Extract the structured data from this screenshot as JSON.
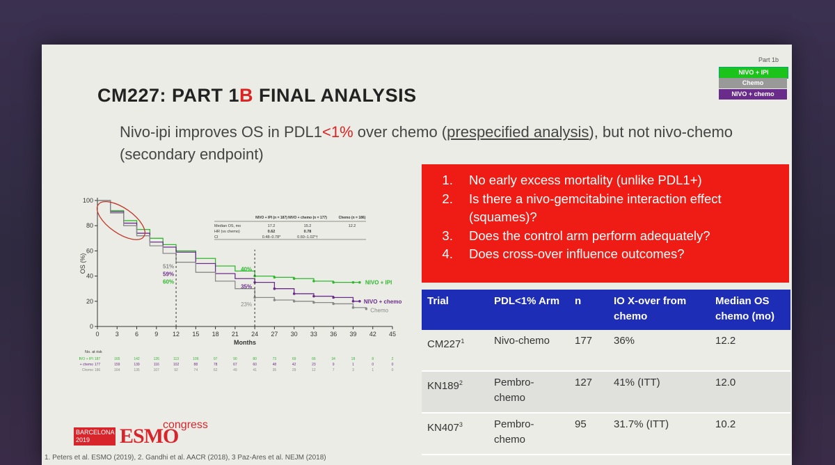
{
  "header": {
    "title_pre": "CM227: PART 1",
    "title_red": "B",
    "title_post": " FINAL ANALYSIS",
    "subtitle_a": "Nivo-ipi improves OS in PDL1",
    "subtitle_red": "<1%",
    "subtitle_b": " over chemo (",
    "subtitle_ul": "prespecified analysis",
    "subtitle_c": "), but not nivo-chemo (secondary endpoint)"
  },
  "legend": {
    "head": "Part 1b",
    "items": [
      "NIVO + IPI",
      "Chemo",
      "NIVO + chemo"
    ],
    "colors": [
      "#1bc31b",
      "#999999",
      "#6a2c8a"
    ]
  },
  "questions": [
    "No early excess mortality (unlike PDL1+)",
    "Is there a nivo-gemcitabine interaction effect (squames)?",
    "Does the control arm perform adequately?",
    "Does cross-over influence outcomes?"
  ],
  "table": {
    "headers": [
      "Trial",
      "PDL<1% Arm",
      "n",
      "IO X-over from chemo",
      "Median OS chemo (mo)"
    ],
    "rows": [
      {
        "trial": "CM227",
        "sup": "1",
        "arm": "Nivo-chemo",
        "n": "177",
        "xover": "36%",
        "os": "12.2"
      },
      {
        "trial": "KN189",
        "sup": "2",
        "arm": "Pembro-chemo",
        "n": "127",
        "xover": "41% (ITT)",
        "os": "12.0"
      },
      {
        "trial": "KN407",
        "sup": "3",
        "arm": "Pembro-chemo",
        "n": "95",
        "xover": "31.7% (ITT)",
        "os": "10.2"
      }
    ]
  },
  "chart_data": {
    "type": "line",
    "title": "",
    "xlabel": "Months",
    "ylabel": "OS (%)",
    "xlim": [
      0,
      45
    ],
    "ylim": [
      0,
      100
    ],
    "xticks": [
      0,
      3,
      6,
      9,
      12,
      15,
      18,
      21,
      24,
      27,
      30,
      33,
      36,
      39,
      42,
      45
    ],
    "yticks": [
      0,
      20,
      40,
      60,
      80,
      100
    ],
    "series": [
      {
        "name": "NIVO + IPI",
        "color": "#2fb82f",
        "x": [
          0,
          2,
          4,
          6,
          8,
          10,
          12,
          15,
          18,
          21,
          24,
          27,
          30,
          33,
          36,
          39,
          40
        ],
        "y": [
          100,
          92,
          84,
          77,
          70,
          65,
          60,
          54,
          48,
          44,
          40,
          39,
          38,
          36,
          35,
          35,
          35
        ]
      },
      {
        "name": "NIVO + chemo",
        "color": "#6a2c8a",
        "x": [
          0,
          2,
          4,
          6,
          8,
          10,
          12,
          15,
          18,
          21,
          24,
          27,
          30,
          33,
          36,
          39,
          40
        ],
        "y": [
          100,
          91,
          82,
          74,
          67,
          63,
          59,
          50,
          42,
          38,
          35,
          30,
          26,
          24,
          23,
          20,
          20
        ]
      },
      {
        "name": "Chemo",
        "color": "#888888",
        "x": [
          0,
          2,
          4,
          6,
          8,
          10,
          12,
          15,
          18,
          21,
          24,
          27,
          30,
          33,
          36,
          39,
          41
        ],
        "y": [
          100,
          90,
          80,
          72,
          64,
          58,
          51,
          43,
          36,
          30,
          23,
          21,
          20,
          19,
          18,
          15,
          14
        ]
      }
    ],
    "annotations": {
      "p12": [
        "60%",
        "59%",
        "51%"
      ],
      "p24": [
        "40%",
        "35%",
        "23%"
      ],
      "end_labels": [
        "NIVO + IPI",
        "NIVO + chemo",
        "Chemo"
      ]
    },
    "inset_table": {
      "headers": [
        "",
        "NIVO + IPI (n = 187)",
        "NIVO + chemo (n = 177)",
        "Chemo (n = 186)"
      ],
      "rows": [
        [
          "Median OS, mo",
          "17.2",
          "15.2",
          "12.2"
        ],
        [
          "HR (vs chemo)",
          "0.62",
          "0.78",
          ""
        ],
        [
          "CI",
          "0.48–0.78*",
          "0.60–1.02*†",
          ""
        ]
      ]
    },
    "risk_table": {
      "label": "No. at risk",
      "arms": [
        "NIVO + IPI",
        "NIVO + chemo",
        "Chemo"
      ],
      "values": [
        [
          "187",
          "165",
          "142",
          "126",
          "113",
          "106",
          "97",
          "90",
          "80",
          "73",
          "69",
          "66",
          "34",
          "18",
          "8",
          "2",
          "0"
        ],
        [
          "177",
          "159",
          "139",
          "116",
          "102",
          "88",
          "78",
          "67",
          "60",
          "48",
          "42",
          "23",
          "9",
          "1",
          "0",
          "0",
          ""
        ],
        [
          "186",
          "164",
          "135",
          "107",
          "92",
          "74",
          "62",
          "49",
          "41",
          "35",
          "29",
          "12",
          "7",
          "3",
          "1",
          "0",
          ""
        ]
      ]
    }
  },
  "footer": {
    "esmo_box": "BARCELONA 2019",
    "esmo_logo": "ESMO",
    "esmo_congress": "congress",
    "refs": "1. Peters et al. ESMO (2019), 2. Gandhi et al. AACR (2018), 3 Paz-Ares et al. NEJM (2018)"
  }
}
